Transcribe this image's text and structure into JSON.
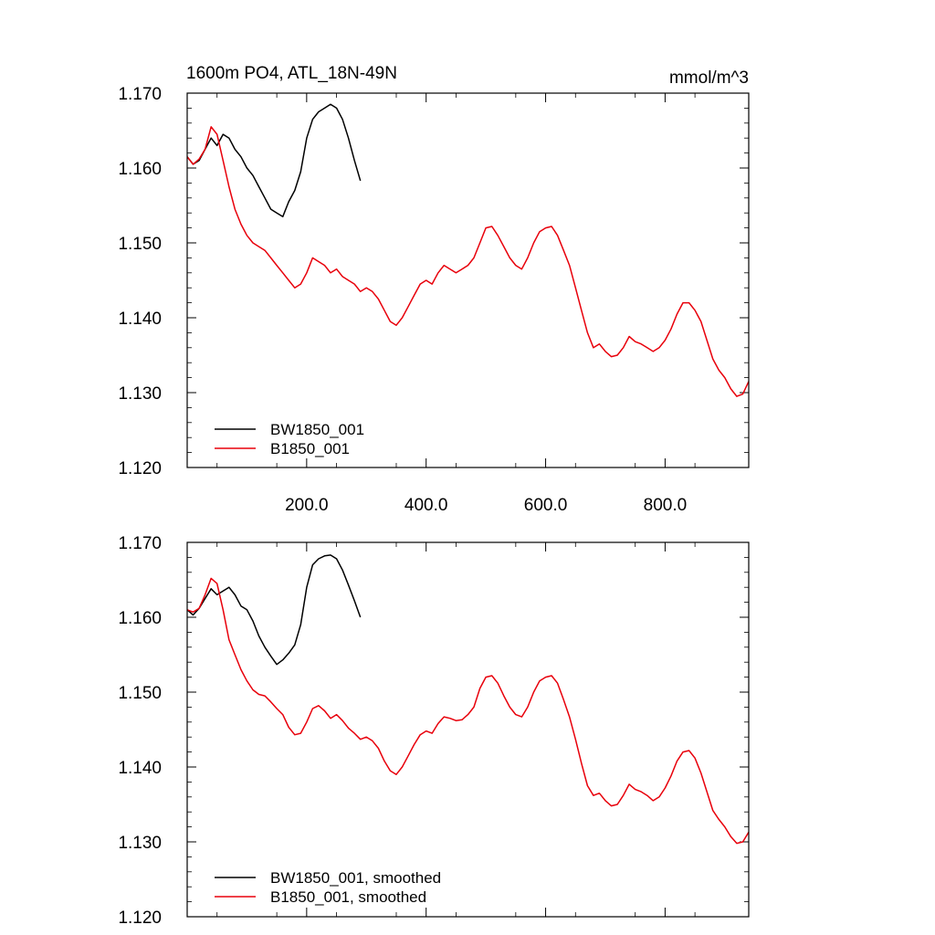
{
  "colors": {
    "black_series": "#000000",
    "red_series": "#e8000b",
    "axis": "#000000"
  },
  "chart_data": [
    {
      "type": "line",
      "title": "1600m PO4, ATL_18N-49N",
      "units": "mmol/m^3",
      "xlim": [
        0,
        940
      ],
      "ylim": [
        1.12,
        1.17
      ],
      "yticks": [
        1.12,
        1.13,
        1.14,
        1.15,
        1.16,
        1.17
      ],
      "ytick_labels": [
        "1.120",
        "1.130",
        "1.140",
        "1.150",
        "1.160",
        "1.170"
      ],
      "xticks": [
        200,
        400,
        600,
        800
      ],
      "xtick_labels": [
        "200.0",
        "400.0",
        "600.0",
        "800.0"
      ],
      "legend_placement": "bottom-left",
      "grid": false,
      "series": [
        {
          "name": "BW1850_001",
          "color": "#000000",
          "x": [
            0,
            10,
            20,
            30,
            40,
            50,
            60,
            70,
            80,
            90,
            100,
            110,
            120,
            130,
            140,
            150,
            160,
            170,
            180,
            190,
            200,
            210,
            220,
            230,
            240,
            250,
            260,
            270,
            280,
            290
          ],
          "y": [
            1.1615,
            1.1605,
            1.161,
            1.1625,
            1.164,
            1.163,
            1.1645,
            1.164,
            1.1625,
            1.1615,
            1.16,
            1.159,
            1.1575,
            1.156,
            1.1545,
            1.154,
            1.1535,
            1.1555,
            1.157,
            1.1595,
            1.164,
            1.1665,
            1.1675,
            1.168,
            1.1685,
            1.168,
            1.1665,
            1.164,
            1.161,
            1.1583
          ]
        },
        {
          "name": "B1850_001",
          "color": "#e8000b",
          "x": [
            0,
            10,
            20,
            30,
            40,
            50,
            60,
            70,
            80,
            90,
            100,
            110,
            120,
            130,
            140,
            150,
            160,
            170,
            180,
            190,
            200,
            210,
            220,
            230,
            240,
            250,
            260,
            270,
            280,
            290,
            300,
            310,
            320,
            330,
            340,
            350,
            360,
            370,
            380,
            390,
            400,
            410,
            420,
            430,
            440,
            450,
            460,
            470,
            480,
            490,
            500,
            510,
            520,
            530,
            540,
            550,
            560,
            570,
            580,
            590,
            600,
            610,
            620,
            630,
            640,
            650,
            660,
            670,
            680,
            690,
            700,
            710,
            720,
            730,
            740,
            750,
            760,
            770,
            780,
            790,
            800,
            810,
            820,
            830,
            840,
            850,
            860,
            870,
            880,
            890,
            900,
            910,
            920,
            930,
            940
          ],
          "y": [
            1.1615,
            1.1605,
            1.1612,
            1.1625,
            1.1655,
            1.1645,
            1.161,
            1.1575,
            1.1545,
            1.1525,
            1.151,
            1.15,
            1.1495,
            1.149,
            1.148,
            1.147,
            1.146,
            1.145,
            1.144,
            1.1445,
            1.146,
            1.148,
            1.1475,
            1.147,
            1.146,
            1.1465,
            1.1455,
            1.145,
            1.1445,
            1.1435,
            1.144,
            1.1435,
            1.1425,
            1.141,
            1.1395,
            1.139,
            1.14,
            1.1415,
            1.143,
            1.1445,
            1.145,
            1.1445,
            1.146,
            1.147,
            1.1465,
            1.146,
            1.1465,
            1.147,
            1.148,
            1.15,
            1.152,
            1.1522,
            1.151,
            1.1495,
            1.148,
            1.147,
            1.1465,
            1.148,
            1.15,
            1.1515,
            1.152,
            1.1522,
            1.151,
            1.149,
            1.147,
            1.144,
            1.141,
            1.138,
            1.136,
            1.1365,
            1.1355,
            1.1348,
            1.135,
            1.136,
            1.1375,
            1.1368,
            1.1365,
            1.136,
            1.1355,
            1.136,
            1.137,
            1.1385,
            1.1405,
            1.142,
            1.142,
            1.141,
            1.1395,
            1.137,
            1.1345,
            1.133,
            1.132,
            1.1305,
            1.1295,
            1.1298,
            1.1315
          ]
        }
      ]
    },
    {
      "type": "line",
      "title": "",
      "xlim": [
        0,
        940
      ],
      "ylim": [
        1.12,
        1.17
      ],
      "yticks": [
        1.12,
        1.13,
        1.14,
        1.15,
        1.16,
        1.17
      ],
      "ytick_labels": [
        "1.120",
        "1.130",
        "1.140",
        "1.150",
        "1.160",
        "1.170"
      ],
      "xticks": [
        200,
        400,
        600,
        800
      ],
      "xtick_labels": [],
      "legend_placement": "bottom-left",
      "grid": false,
      "series": [
        {
          "name": "BW1850_001, smoothed",
          "color": "#000000",
          "x": [
            0,
            10,
            20,
            30,
            40,
            50,
            60,
            70,
            80,
            90,
            100,
            110,
            120,
            130,
            140,
            150,
            160,
            170,
            180,
            190,
            200,
            210,
            220,
            230,
            240,
            250,
            260,
            270,
            280,
            290
          ],
          "y": [
            1.161,
            1.1603,
            1.1612,
            1.1625,
            1.1638,
            1.163,
            1.1635,
            1.164,
            1.163,
            1.1615,
            1.161,
            1.1595,
            1.1575,
            1.156,
            1.1548,
            1.1537,
            1.1543,
            1.1552,
            1.1563,
            1.159,
            1.164,
            1.167,
            1.1678,
            1.1682,
            1.1683,
            1.1678,
            1.1663,
            1.1643,
            1.1622,
            1.16
          ]
        },
        {
          "name": "B1850_001, smoothed",
          "color": "#e8000b",
          "x": [
            0,
            10,
            20,
            30,
            40,
            50,
            60,
            70,
            80,
            90,
            100,
            110,
            120,
            130,
            140,
            150,
            160,
            170,
            180,
            190,
            200,
            210,
            220,
            230,
            240,
            250,
            260,
            270,
            280,
            290,
            300,
            310,
            320,
            330,
            340,
            350,
            360,
            370,
            380,
            390,
            400,
            410,
            420,
            430,
            440,
            450,
            460,
            470,
            480,
            490,
            500,
            510,
            520,
            530,
            540,
            550,
            560,
            570,
            580,
            590,
            600,
            610,
            620,
            630,
            640,
            650,
            660,
            670,
            680,
            690,
            700,
            710,
            720,
            730,
            740,
            750,
            760,
            770,
            780,
            790,
            800,
            810,
            820,
            830,
            840,
            850,
            860,
            870,
            880,
            890,
            900,
            910,
            920,
            930,
            940
          ],
          "y": [
            1.161,
            1.1607,
            1.1612,
            1.163,
            1.1652,
            1.1645,
            1.161,
            1.157,
            1.155,
            1.153,
            1.1515,
            1.1503,
            1.1497,
            1.1495,
            1.1487,
            1.1478,
            1.147,
            1.1453,
            1.1443,
            1.1445,
            1.146,
            1.1478,
            1.1482,
            1.1475,
            1.1465,
            1.147,
            1.1462,
            1.1452,
            1.1445,
            1.1437,
            1.144,
            1.1435,
            1.1425,
            1.1408,
            1.1395,
            1.139,
            1.14,
            1.1415,
            1.143,
            1.1443,
            1.1448,
            1.1445,
            1.1458,
            1.1467,
            1.1465,
            1.1462,
            1.1463,
            1.147,
            1.148,
            1.1505,
            1.152,
            1.1522,
            1.1512,
            1.1495,
            1.148,
            1.147,
            1.1467,
            1.148,
            1.15,
            1.1515,
            1.152,
            1.1522,
            1.1512,
            1.149,
            1.1467,
            1.1437,
            1.1405,
            1.1375,
            1.1362,
            1.1365,
            1.1355,
            1.1348,
            1.135,
            1.1362,
            1.1377,
            1.137,
            1.1367,
            1.1362,
            1.1355,
            1.136,
            1.1372,
            1.1388,
            1.1408,
            1.142,
            1.1422,
            1.1412,
            1.1392,
            1.1367,
            1.1342,
            1.133,
            1.132,
            1.1307,
            1.1298,
            1.13,
            1.1313
          ]
        }
      ]
    }
  ]
}
